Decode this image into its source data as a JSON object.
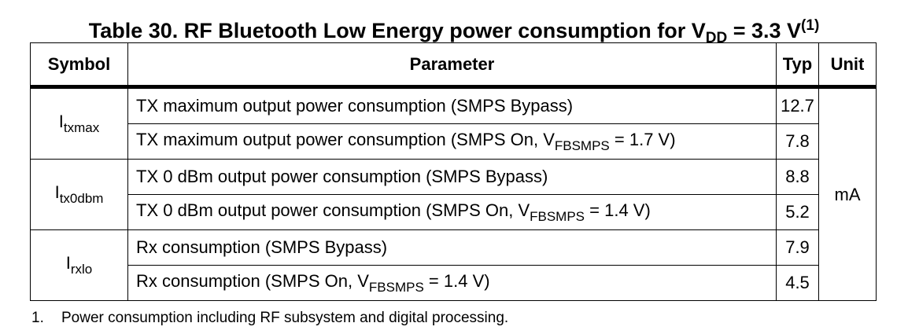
{
  "title": {
    "text_before": "Table 30. RF Bluetooth Low Energy power consumption for V",
    "subscript": "DD",
    "text_after": " = 3.3 V",
    "note_ref": "(1)"
  },
  "table": {
    "headers": {
      "symbol": "Symbol",
      "parameter": "Parameter",
      "typ": "Typ",
      "unit": "Unit"
    },
    "unit_value": "mA",
    "groups": [
      {
        "symbol_base": "I",
        "symbol_sub": "txmax",
        "rows": [
          {
            "parameter": "TX maximum output power consumption (SMPS Bypass)",
            "param_sub": "",
            "param_after": "",
            "typ": "12.7"
          },
          {
            "parameter": "TX maximum output power consumption (SMPS On, V",
            "param_sub": "FBSMPS",
            "param_after": " = 1.7 V)",
            "typ": "7.8"
          }
        ]
      },
      {
        "symbol_base": "I",
        "symbol_sub": "tx0dbm",
        "rows": [
          {
            "parameter": "TX 0 dBm output power consumption (SMPS Bypass)",
            "param_sub": "",
            "param_after": "",
            "typ": "8.8"
          },
          {
            "parameter": "TX 0 dBm output power consumption (SMPS On, V",
            "param_sub": "FBSMPS",
            "param_after": " = 1.4 V)",
            "typ": "5.2"
          }
        ]
      },
      {
        "symbol_base": "I",
        "symbol_sub": "rxlo",
        "rows": [
          {
            "parameter": "Rx consumption (SMPS Bypass)",
            "param_sub": "",
            "param_after": "",
            "typ": "7.9"
          },
          {
            "parameter": "Rx consumption (SMPS On, V",
            "param_sub": "FBSMPS",
            "param_after": " = 1.4 V)",
            "typ": "4.5"
          }
        ]
      }
    ]
  },
  "footnote": {
    "number": "1.",
    "text": "Power consumption including RF subsystem and digital processing."
  }
}
